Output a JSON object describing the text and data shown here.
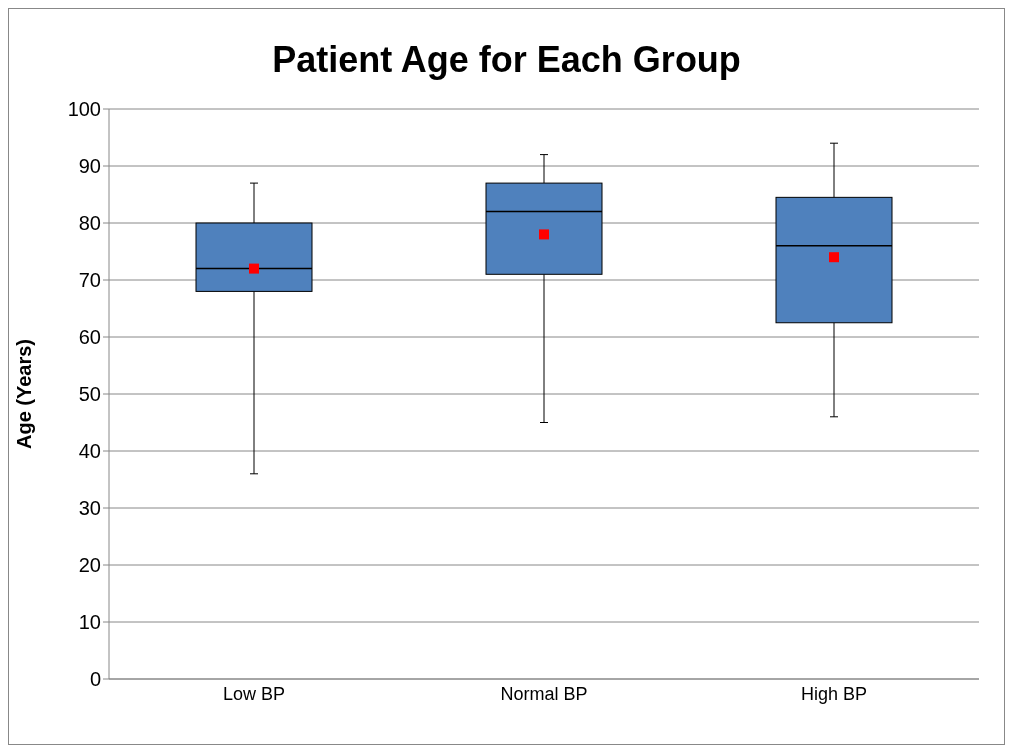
{
  "chart_data": {
    "type": "box",
    "title": "Patient Age for Each Group",
    "ylabel": "Age (Years)",
    "categories": [
      "Low BP",
      "Normal BP",
      "High BP"
    ],
    "ylim": [
      0,
      100
    ],
    "yticks": [
      0,
      10,
      20,
      30,
      40,
      50,
      60,
      70,
      80,
      90,
      100
    ],
    "grid": "y",
    "marker": "square",
    "series": [
      {
        "color": "#4f81bd",
        "boxes": [
          {
            "low": 36,
            "q1": 68,
            "median": 72,
            "q3": 80,
            "high": 87,
            "mean": 72
          },
          {
            "low": 45,
            "q1": 71,
            "median": 82,
            "q3": 87,
            "high": 92,
            "mean": 78
          },
          {
            "low": 46,
            "q1": 62.5,
            "median": 76,
            "q3": 84.5,
            "high": 94,
            "mean": 74
          }
        ]
      }
    ]
  }
}
